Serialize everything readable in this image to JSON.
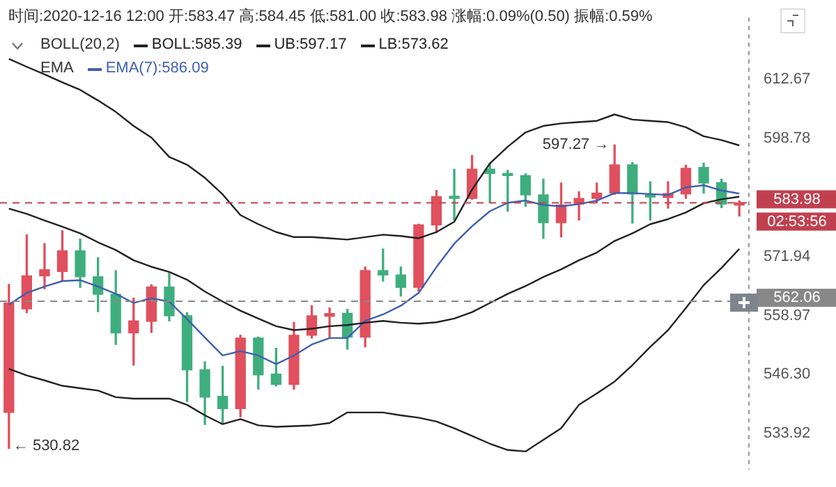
{
  "chart_data": {
    "type": "candlestick",
    "title": "时间:2020-12-16 12:00 开:583.47 高:584.45 低:581.00 收:583.98 涨幅:0.09%(0.50) 振幅:0.59%",
    "categories": [
      null,
      null,
      null,
      null,
      null,
      null,
      null,
      null,
      null,
      null,
      null,
      null,
      null,
      null,
      null,
      null,
      null,
      null,
      null,
      null,
      null,
      null,
      null,
      null,
      null,
      null,
      null,
      null,
      null,
      null,
      null,
      null,
      null,
      null,
      null,
      null,
      null,
      null,
      null,
      null,
      null,
      null
    ],
    "ohlc": [
      [
        538.3,
        565.75,
        530.82,
        561.7
      ],
      [
        560.4,
        576.75,
        559.6,
        567.65
      ],
      [
        567.65,
        574.8,
        564.8,
        569.0
      ],
      [
        568.6,
        577.7,
        566.7,
        573.2
      ],
      [
        573.2,
        575.8,
        565.1,
        567.45
      ],
      [
        567.45,
        571.65,
        559.8,
        563.6
      ],
      [
        563.6,
        568.8,
        552.7,
        555.2
      ],
      [
        555.2,
        562.75,
        548.3,
        557.8
      ],
      [
        557.7,
        565.7,
        555.3,
        565.2
      ],
      [
        565.2,
        568.2,
        557.8,
        558.9
      ],
      [
        558.95,
        559.6,
        540.6,
        547.3
      ],
      [
        547.3,
        549.0,
        535.8,
        541.5
      ],
      [
        541.7,
        548.06,
        536.1,
        539.1
      ],
      [
        539.1,
        554.7,
        537.4,
        554.1
      ],
      [
        554.1,
        554.3,
        543.2,
        546.2
      ],
      [
        546.4,
        551.9,
        543.9,
        544.2
      ],
      [
        544.2,
        557.5,
        543.2,
        554.7
      ],
      [
        554.7,
        561.1,
        554.1,
        558.9
      ],
      [
        558.8,
        560.6,
        554.1,
        559.4
      ],
      [
        559.45,
        560.3,
        551.7,
        554.3
      ],
      [
        554.3,
        569.6,
        552.2,
        568.8
      ],
      [
        568.8,
        573.6,
        566.5,
        567.85
      ],
      [
        567.85,
        569.6,
        563.2,
        565.1
      ],
      [
        565.1,
        579.16,
        564.3,
        579.0
      ],
      [
        579.0,
        586.8,
        577.3,
        585.4
      ],
      [
        585.5,
        591.7,
        580.1,
        585.0
      ],
      [
        585.0,
        594.85,
        584.8,
        591.7
      ],
      [
        591.7,
        593.1,
        584.0,
        590.7
      ],
      [
        590.7,
        591.4,
        582.1,
        590.2
      ],
      [
        590.2,
        590.6,
        583.2,
        585.8
      ],
      [
        585.8,
        589.4,
        576.0,
        579.5
      ],
      [
        579.5,
        588.5,
        576.3,
        583.5
      ],
      [
        583.7,
        586.5,
        580.1,
        585.0
      ],
      [
        585.0,
        588.5,
        584.0,
        586.2
      ],
      [
        586.2,
        597.27,
        585.9,
        592.7
      ],
      [
        592.7,
        593.2,
        579.4,
        586.0
      ],
      [
        585.8,
        588.8,
        580.1,
        585.3
      ],
      [
        585.2,
        588.8,
        582.8,
        586.1
      ],
      [
        586.0,
        592.6,
        585.0,
        591.9
      ],
      [
        592.1,
        593.1,
        586.2,
        588.5
      ],
      [
        588.6,
        589.4,
        582.9,
        583.7
      ],
      [
        583.47,
        584.45,
        581.0,
        583.98
      ]
    ],
    "colors": [
      "#e0505e",
      "#e0505e",
      "#e0505e",
      "#e0505e",
      "#3fae7e",
      "#3fae7e",
      "#3fae7e",
      "#e0505e",
      "#e0505e",
      "#3fae7e",
      "#3fae7e",
      "#3fae7e",
      "#3fae7e",
      "#e0505e",
      "#3fae7e",
      "#3fae7e",
      "#e0505e",
      "#e0505e",
      "#e0505e",
      "#3fae7e",
      "#e0505e",
      "#3fae7e",
      "#3fae7e",
      "#e0505e",
      "#e0505e",
      "#3fae7e",
      "#e0505e",
      "#3fae7e",
      "#3fae7e",
      "#3fae7e",
      "#3fae7e",
      "#e0505e",
      "#e0505e",
      "#e0505e",
      "#e0505e",
      "#3fae7e",
      "#3fae7e",
      "#e0505e",
      "#e0505e",
      "#3fae7e",
      "#3fae7e",
      "#e0505e"
    ],
    "series": [
      {
        "name": "BOLL:585.39",
        "type": "line",
        "color": "#222222",
        "values": [
          582.67,
          581.5,
          580.0,
          578.6,
          577.1,
          575.1,
          573.38,
          571.1,
          569.65,
          568.5,
          566.8,
          564.2,
          562.0,
          560.0,
          558.3,
          556.65,
          555.8,
          556.1,
          556.65,
          556.9,
          557.4,
          557.8,
          557.4,
          557.2,
          557.5,
          558.3,
          559.7,
          561.7,
          563.7,
          565.4,
          567.4,
          569.1,
          571.1,
          572.8,
          575.4,
          577.1,
          579.16,
          580.3,
          581.8,
          583.9,
          584.8,
          585.39
        ]
      },
      {
        "name": "UB:597.17",
        "type": "line",
        "color": "#222222",
        "values": [
          617.6,
          615.7,
          613.9,
          612.0,
          610.2,
          607.7,
          605.0,
          601.7,
          599.0,
          594.5,
          592.7,
          589.7,
          585.9,
          581.2,
          579.16,
          577.4,
          576.26,
          576.26,
          576.0,
          575.7,
          576.26,
          576.8,
          576.5,
          576.0,
          577.4,
          579.7,
          587.0,
          593.0,
          596.86,
          600.2,
          601.7,
          602.3,
          602.6,
          602.9,
          604.4,
          603.2,
          602.9,
          602.6,
          601.4,
          599.3,
          598.4,
          597.17
        ]
      },
      {
        "name": "LB:573.62",
        "type": "line",
        "color": "#222222",
        "values": [
          547.5,
          546.1,
          545.05,
          543.9,
          543.4,
          542.9,
          541.5,
          541.2,
          541.2,
          541.2,
          539.9,
          537.7,
          535.85,
          536.9,
          535.6,
          535.3,
          535.45,
          535.6,
          536.1,
          538.3,
          538.3,
          538.3,
          537.7,
          537.2,
          536.4,
          535.0,
          533.4,
          531.8,
          530.5,
          530.2,
          532.6,
          535.0,
          539.9,
          542.3,
          544.8,
          548.3,
          552.2,
          555.8,
          560.6,
          565.6,
          569.4,
          573.62
        ]
      },
      {
        "name": "EMA(7):586.09",
        "type": "line",
        "color": "#3f5fb0",
        "values": [
          561.35,
          563.9,
          565.3,
          566.5,
          566.7,
          565.3,
          563.7,
          561.7,
          562.75,
          562.0,
          558.2,
          554.2,
          550.35,
          551.3,
          550.35,
          548.5,
          550.35,
          552.7,
          554.1,
          554.1,
          557.8,
          559.2,
          561.1,
          563.9,
          569.6,
          574.8,
          578.7,
          582.1,
          584.0,
          584.5,
          583.5,
          583.2,
          583.7,
          584.5,
          586.2,
          586.2,
          586.0,
          585.8,
          587.5,
          588.0,
          586.8,
          586.09
        ]
      }
    ],
    "ylim": [
      526.5,
      627.6
    ],
    "yticks": [
      612.67,
      598.78,
      571.94,
      558.97,
      {
        "value": 546.3,
        "label": "546.30"
      },
      533.92
    ],
    "log": true,
    "tick_labels": "y",
    "legend": "top left",
    "marker": "none",
    "ref_lines": [
      {
        "axis": "y",
        "value": 583.98,
        "label": "583.98",
        "color": "#c0404f",
        "line_style": "dashed"
      },
      {
        "axis": "y",
        "value": 562.06,
        "label": "562.06",
        "color": "#888888",
        "line_style": "dashed"
      }
    ],
    "annotations": [
      "BOLL(20,2)",
      "EMA",
      "597.27 →",
      "← 530.82",
      "02:53:56"
    ]
  }
}
